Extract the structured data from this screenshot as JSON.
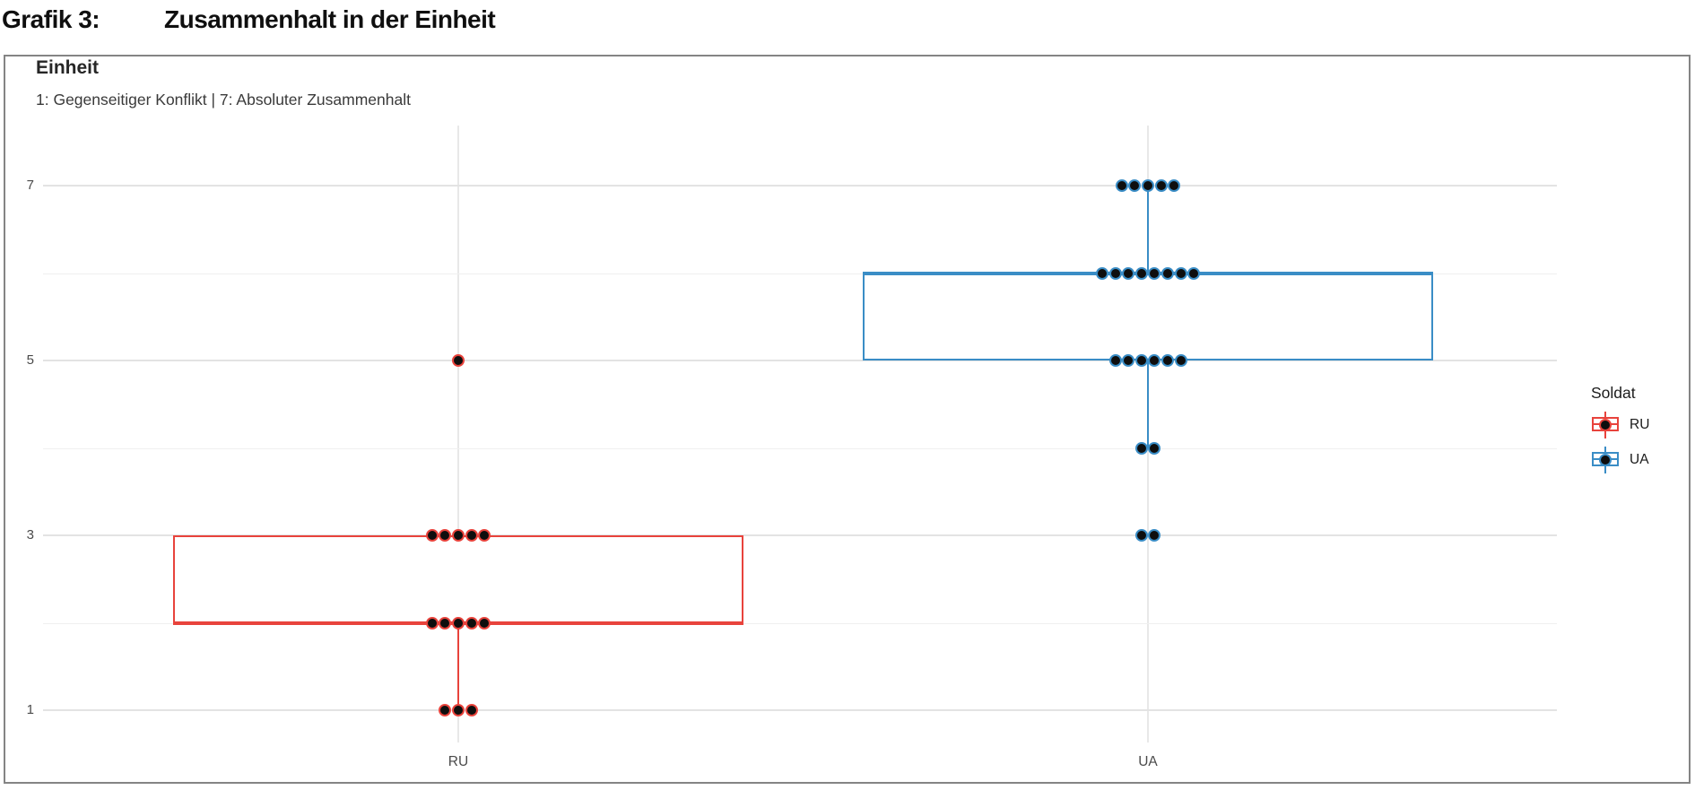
{
  "header": {
    "label": "Grafik 3:",
    "title": "Zusammenhalt in der Einheit"
  },
  "panel": {
    "title": "Einheit",
    "subtitle": "1: Gegenseitiger Konflikt | 7: Absoluter Zusammenhalt"
  },
  "chart_data": {
    "type": "boxplot",
    "title": "Einheit",
    "subtitle": "1: Gegenseitiger Konflikt | 7: Absoluter Zusammenhalt",
    "categories": [
      "RU",
      "UA"
    ],
    "yticks": [
      1,
      3,
      5,
      7
    ],
    "yminor": [
      2,
      4,
      6
    ],
    "ylim": [
      1,
      7
    ],
    "grid": "horizontal major+minor, vertical at categories",
    "legend": {
      "title": "Soldat",
      "position": "right"
    },
    "point_color": "#0e0e0e",
    "series": [
      {
        "name": "RU",
        "color": "#e8433c",
        "box": {
          "q1": 2,
          "median": 2,
          "q3": 3,
          "whisker_low": 1,
          "whisker_high": 3,
          "outliers": [
            5
          ]
        },
        "points": [
          {
            "value": 5,
            "count": 1
          },
          {
            "value": 3,
            "count": 5
          },
          {
            "value": 2,
            "count": 5
          },
          {
            "value": 1,
            "count": 3
          }
        ]
      },
      {
        "name": "UA",
        "color": "#3a8dc6",
        "box": {
          "q1": 5,
          "median": 6,
          "q3": 6,
          "whisker_low": 4,
          "whisker_high": 7,
          "outliers": [
            3,
            3
          ]
        },
        "points": [
          {
            "value": 7,
            "count": 5
          },
          {
            "value": 6,
            "count": 8
          },
          {
            "value": 5,
            "count": 6
          },
          {
            "value": 4,
            "count": 2
          },
          {
            "value": 3,
            "count": 2
          }
        ]
      }
    ]
  }
}
